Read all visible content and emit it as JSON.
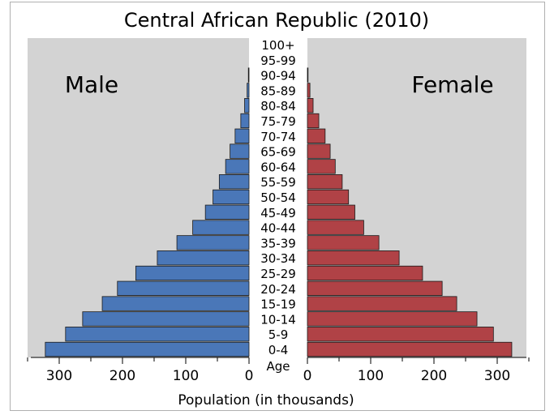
{
  "chart_data": {
    "type": "bar",
    "title": "Central African Republic (2010)",
    "xlabel": "Population (in thousands)",
    "age_label": "Age",
    "male_label": "Male",
    "female_label": "Female",
    "xlim": [
      0,
      350
    ],
    "x_ticks": [
      0,
      100,
      200,
      300
    ],
    "categories": [
      "0-4",
      "5-9",
      "10-14",
      "15-19",
      "20-24",
      "25-29",
      "30-34",
      "35-39",
      "40-44",
      "45-49",
      "50-54",
      "55-59",
      "60-64",
      "65-69",
      "70-74",
      "75-79",
      "80-84",
      "85-89",
      "90-94",
      "95-99",
      "100+"
    ],
    "series": [
      {
        "name": "Male",
        "color": "#4a77b8",
        "values": [
          322,
          290,
          263,
          232,
          208,
          179,
          145,
          114,
          89,
          69,
          57,
          47,
          37,
          30,
          22,
          13,
          7,
          3,
          1,
          0,
          0
        ]
      },
      {
        "name": "Female",
        "color": "#b04246",
        "values": [
          323,
          294,
          268,
          236,
          213,
          182,
          145,
          113,
          89,
          75,
          65,
          55,
          44,
          36,
          28,
          18,
          9,
          4,
          1,
          0,
          0
        ]
      }
    ],
    "background": "#d3d3d3"
  }
}
